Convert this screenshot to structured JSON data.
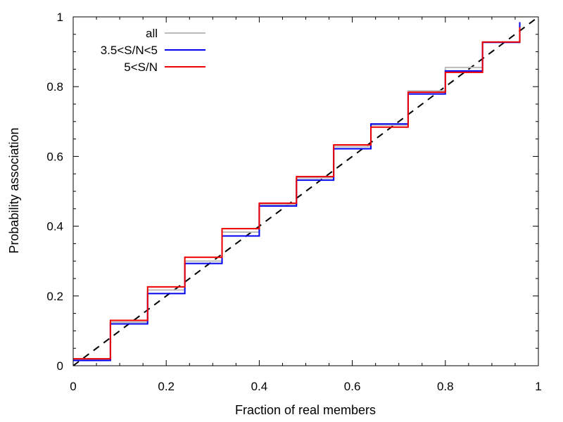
{
  "chart_data": {
    "type": "line",
    "title": "",
    "xlabel": "Fraction of real members",
    "ylabel": "Probability association",
    "xlim": [
      0,
      1
    ],
    "ylim": [
      0,
      1
    ],
    "grid": false,
    "legend_position": "top-left",
    "x_ticks": [
      0,
      0.2,
      0.4,
      0.6,
      0.8,
      1
    ],
    "y_ticks": [
      0,
      0.2,
      0.4,
      0.6,
      0.8,
      1
    ],
    "x_tick_labels": [
      "0",
      "0.2",
      "0.4",
      "0.6",
      "0.8",
      "1"
    ],
    "y_tick_labels": [
      "0",
      "0.2",
      "0.4",
      "0.6",
      "0.8",
      "1"
    ],
    "step_edges": [
      0,
      0.08,
      0.16,
      0.24,
      0.32,
      0.4,
      0.48,
      0.56,
      0.64,
      0.72,
      0.8,
      0.88,
      0.96
    ],
    "series": [
      {
        "name": "all",
        "color": "#bbbbbb",
        "values": [
          0.018,
          0.125,
          0.217,
          0.3,
          0.383,
          0.462,
          0.538,
          0.628,
          0.69,
          0.788,
          0.855,
          0.928
        ],
        "end_value": 0.975
      },
      {
        "name": "3.5<S/N<5",
        "color": "#0000ee",
        "values": [
          0.015,
          0.12,
          0.207,
          0.293,
          0.372,
          0.458,
          0.532,
          0.622,
          0.693,
          0.779,
          0.845,
          0.927
        ],
        "end_value": 0.985
      },
      {
        "name": "5<S/N",
        "color": "#ee0000",
        "values": [
          0.02,
          0.13,
          0.226,
          0.311,
          0.393,
          0.466,
          0.542,
          0.633,
          0.684,
          0.784,
          0.841,
          0.928
        ],
        "end_value": 0.97
      }
    ],
    "reference_line": {
      "name": "y = x",
      "color": "#000000",
      "style": "dashed",
      "from": [
        0,
        0
      ],
      "to": [
        1,
        1
      ]
    }
  }
}
